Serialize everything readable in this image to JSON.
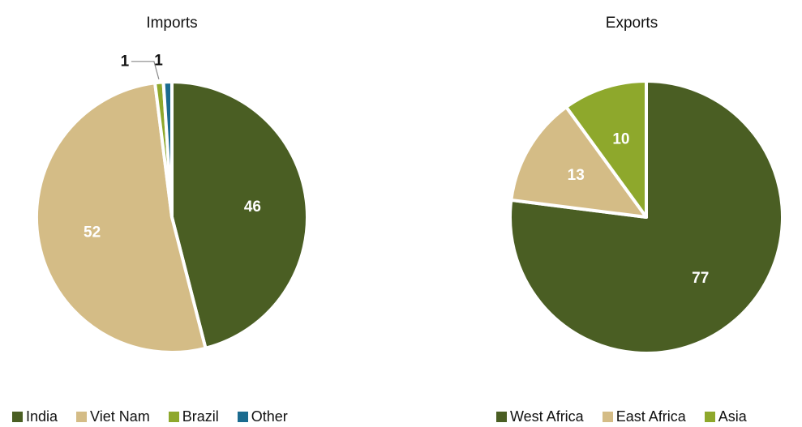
{
  "chart_data": [
    {
      "type": "pie",
      "title": "Imports",
      "categories": [
        "India",
        "Viet Nam",
        "Brazil",
        "Other"
      ],
      "values": [
        46,
        52,
        1,
        1
      ],
      "colors": [
        "#4a5e23",
        "#d4bc86",
        "#8ea82c",
        "#1b6b8f"
      ],
      "data_labels": [
        "46",
        "52",
        "1",
        "1"
      ],
      "legend_position": "bottom"
    },
    {
      "type": "pie",
      "title": "Exports",
      "categories": [
        "West Africa",
        "East Africa",
        "Asia"
      ],
      "values": [
        77,
        13,
        10
      ],
      "colors": [
        "#4a5e23",
        "#d4bc86",
        "#8ea82c"
      ],
      "data_labels": [
        "77",
        "13",
        "10"
      ],
      "legend_position": "bottom"
    }
  ]
}
